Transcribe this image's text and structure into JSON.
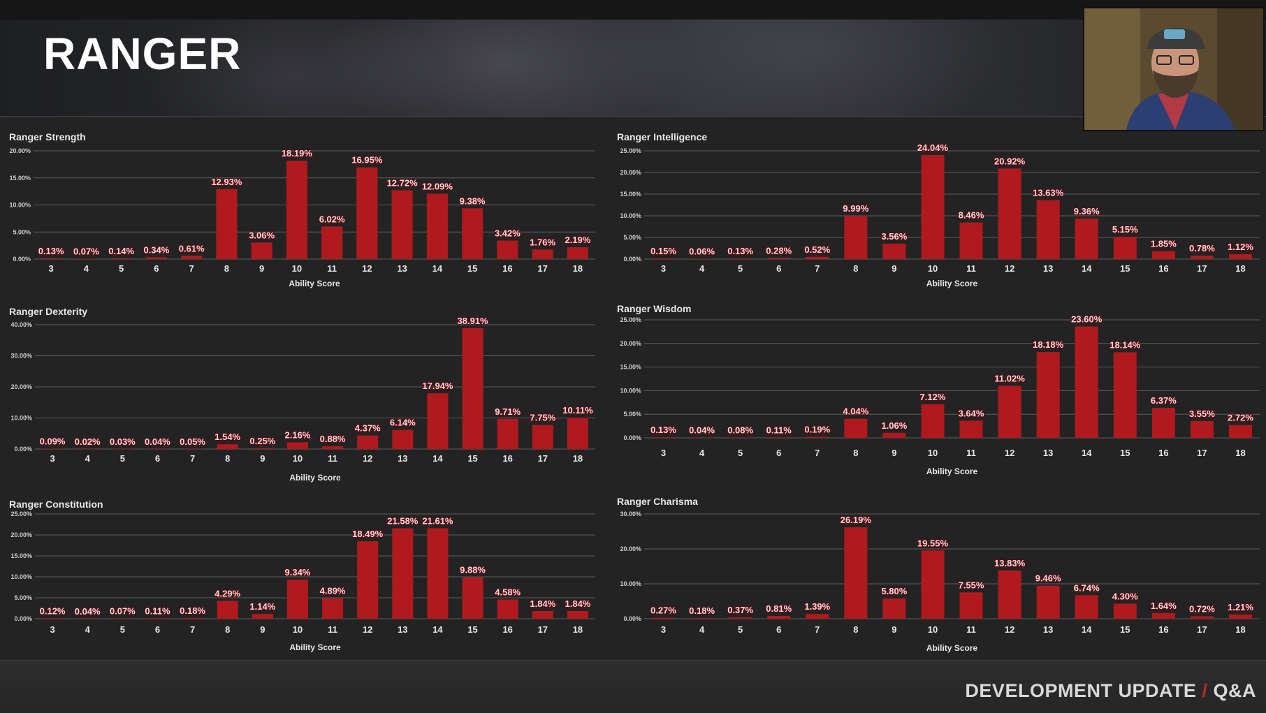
{
  "header": {
    "title": "RANGER"
  },
  "footer": {
    "label_left": "DEVELOPMENT UPDATE",
    "separator": "/",
    "label_right": "Q&A"
  },
  "colors": {
    "bar": "#b0191e",
    "background": "#232323",
    "accent": "#c0282c"
  },
  "webcam": {
    "icon": "webcam-person-icon"
  },
  "chart_data": [
    {
      "type": "bar",
      "title": "Ranger Strength",
      "xlabel": "Ability Score",
      "ylabel": "",
      "categories": [
        "3",
        "4",
        "5",
        "6",
        "7",
        "8",
        "9",
        "10",
        "11",
        "12",
        "13",
        "14",
        "15",
        "16",
        "17",
        "18"
      ],
      "values": [
        0.13,
        0.07,
        0.14,
        0.34,
        0.61,
        12.93,
        3.06,
        18.19,
        6.02,
        16.95,
        12.72,
        12.09,
        9.38,
        3.42,
        1.76,
        2.19
      ],
      "labels": [
        "0.13%",
        "0.07%",
        "0.14%",
        "0.34%",
        "0.61%",
        "12.93%",
        "3.06%",
        "18.19%",
        "6.02%",
        "16.95%",
        "12.72%",
        "12.09%",
        "9.38%",
        "3.42%",
        "1.76%",
        "2.19%"
      ],
      "yticks": [
        "0.00%",
        "5.00%",
        "10.00%",
        "15.00%",
        "20.00%"
      ],
      "ylim": [
        0,
        20
      ]
    },
    {
      "type": "bar",
      "title": "Ranger Intelligence",
      "xlabel": "Ability Score",
      "ylabel": "",
      "categories": [
        "3",
        "4",
        "5",
        "6",
        "7",
        "8",
        "9",
        "10",
        "11",
        "12",
        "13",
        "14",
        "15",
        "16",
        "17",
        "18"
      ],
      "values": [
        0.15,
        0.06,
        0.13,
        0.28,
        0.52,
        9.99,
        3.56,
        24.04,
        8.46,
        20.92,
        13.63,
        9.36,
        5.15,
        1.85,
        0.78,
        1.12
      ],
      "labels": [
        "0.15%",
        "0.06%",
        "0.13%",
        "0.28%",
        "0.52%",
        "9.99%",
        "3.56%",
        "24.04%",
        "8.46%",
        "20.92%",
        "13.63%",
        "9.36%",
        "5.15%",
        "1.85%",
        "0.78%",
        "1.12%"
      ],
      "yticks": [
        "0.00%",
        "5.00%",
        "10.00%",
        "15.00%",
        "20.00%",
        "25.00%"
      ],
      "ylim": [
        0,
        25
      ]
    },
    {
      "type": "bar",
      "title": "Ranger Dexterity",
      "xlabel": "Ability Score",
      "ylabel": "",
      "categories": [
        "3",
        "4",
        "5",
        "6",
        "7",
        "8",
        "9",
        "10",
        "11",
        "12",
        "13",
        "14",
        "15",
        "16",
        "17",
        "18"
      ],
      "values": [
        0.09,
        0.02,
        0.03,
        0.04,
        0.05,
        1.54,
        0.25,
        2.16,
        0.88,
        4.37,
        6.14,
        17.94,
        38.91,
        9.71,
        7.75,
        10.11
      ],
      "labels": [
        "0.09%",
        "0.02%",
        "0.03%",
        "0.04%",
        "0.05%",
        "1.54%",
        "0.25%",
        "2.16%",
        "0.88%",
        "4.37%",
        "6.14%",
        "17.94%",
        "38.91%",
        "9.71%",
        "7.75%",
        "10.11%"
      ],
      "yticks": [
        "0.00%",
        "10.00%",
        "20.00%",
        "30.00%",
        "40.00%"
      ],
      "ylim": [
        0,
        40
      ]
    },
    {
      "type": "bar",
      "title": "Ranger Wisdom",
      "xlabel": "Ability Score",
      "ylabel": "",
      "categories": [
        "3",
        "4",
        "5",
        "6",
        "7",
        "8",
        "9",
        "10",
        "11",
        "12",
        "13",
        "14",
        "15",
        "16",
        "17",
        "18"
      ],
      "values": [
        0.13,
        0.04,
        0.08,
        0.11,
        0.19,
        4.04,
        1.06,
        7.12,
        3.64,
        11.02,
        18.18,
        23.6,
        18.14,
        6.37,
        3.55,
        2.72
      ],
      "labels": [
        "0.13%",
        "0.04%",
        "0.08%",
        "0.11%",
        "0.19%",
        "4.04%",
        "1.06%",
        "7.12%",
        "3.64%",
        "11.02%",
        "18.18%",
        "23.60%",
        "18.14%",
        "6.37%",
        "3.55%",
        "2.72%"
      ],
      "yticks": [
        "0.00%",
        "5.00%",
        "10.00%",
        "15.00%",
        "20.00%",
        "25.00%"
      ],
      "ylim": [
        0,
        25
      ]
    },
    {
      "type": "bar",
      "title": "Ranger Constitution",
      "xlabel": "Ability Score",
      "ylabel": "",
      "categories": [
        "3",
        "4",
        "5",
        "6",
        "7",
        "8",
        "9",
        "10",
        "11",
        "12",
        "13",
        "14",
        "15",
        "16",
        "17",
        "18"
      ],
      "values": [
        0.12,
        0.04,
        0.07,
        0.11,
        0.18,
        4.29,
        1.14,
        9.34,
        4.89,
        18.49,
        21.58,
        21.61,
        9.88,
        4.58,
        1.84,
        1.84
      ],
      "labels": [
        "0.12%",
        "0.04%",
        "0.07%",
        "0.11%",
        "0.18%",
        "4.29%",
        "1.14%",
        "9.34%",
        "4.89%",
        "18.49%",
        "21.58%",
        "21.61%",
        "9.88%",
        "4.58%",
        "1.84%",
        "1.84%"
      ],
      "yticks": [
        "0.00%",
        "5.00%",
        "10.00%",
        "15.00%",
        "20.00%",
        "25.00%"
      ],
      "ylim": [
        0,
        25
      ]
    },
    {
      "type": "bar",
      "title": "Ranger Charisma",
      "xlabel": "Ability Score",
      "ylabel": "",
      "categories": [
        "3",
        "4",
        "5",
        "6",
        "7",
        "8",
        "9",
        "10",
        "11",
        "12",
        "13",
        "14",
        "15",
        "16",
        "17",
        "18"
      ],
      "values": [
        0.27,
        0.18,
        0.37,
        0.81,
        1.39,
        26.19,
        5.8,
        19.55,
        7.55,
        13.83,
        9.46,
        6.74,
        4.3,
        1.64,
        0.72,
        1.21
      ],
      "labels": [
        "0.27%",
        "0.18%",
        "0.37%",
        "0.81%",
        "1.39%",
        "26.19%",
        "5.80%",
        "19.55%",
        "7.55%",
        "13.83%",
        "9.46%",
        "6.74%",
        "4.30%",
        "1.64%",
        "0.72%",
        "1.21%"
      ],
      "yticks": [
        "0.00%",
        "10.00%",
        "20.00%",
        "30.00%"
      ],
      "ylim": [
        0,
        30
      ]
    }
  ]
}
